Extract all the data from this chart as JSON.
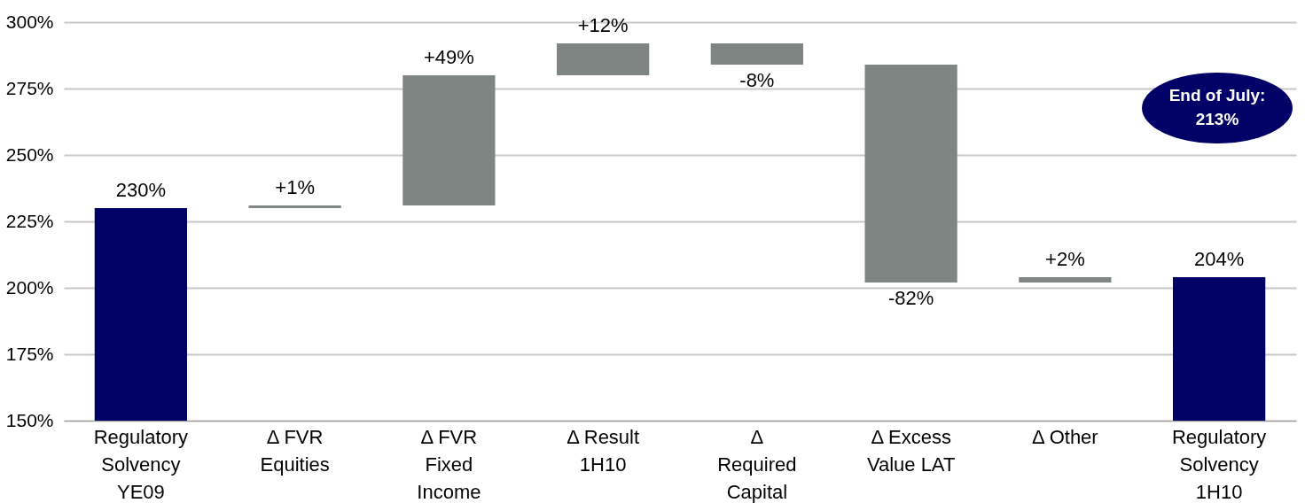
{
  "chart_data": {
    "type": "bar",
    "categories": [
      "Regulatory Solvency YE09",
      "Δ FVR Equities",
      "Δ FVR Fixed Income",
      "Δ Result 1H10",
      "Δ Required Capital",
      "Δ Excess Value LAT",
      "Δ Other",
      "Regulatory Solvency 1H10"
    ],
    "values": [
      230,
      1,
      49,
      12,
      -8,
      -82,
      2,
      204
    ],
    "base": [
      null,
      230,
      231,
      280,
      292,
      284,
      202,
      null
    ],
    "colors": [
      "#000066",
      "#7f8583",
      "#7f8583",
      "#7f8583",
      "#7f8583",
      "#7f8583",
      "#7f8583",
      "#000066"
    ],
    "value_labels": [
      "230%",
      "+1%",
      "+49%",
      "+12%",
      "-8%",
      "-82%",
      "+2%",
      "204%"
    ],
    "ylim": [
      150,
      300
    ],
    "yticks": [
      {
        "value": 150,
        "label": "150%"
      },
      {
        "value": 175,
        "label": "175%"
      },
      {
        "value": 200,
        "label": "200%"
      },
      {
        "value": 225,
        "label": "225%"
      },
      {
        "value": 250,
        "label": "250%"
      },
      {
        "value": 275,
        "label": "275%"
      },
      {
        "value": 300,
        "label": "300%"
      }
    ],
    "grid": "y",
    "annotations": [
      "End of July: 213%"
    ]
  }
}
